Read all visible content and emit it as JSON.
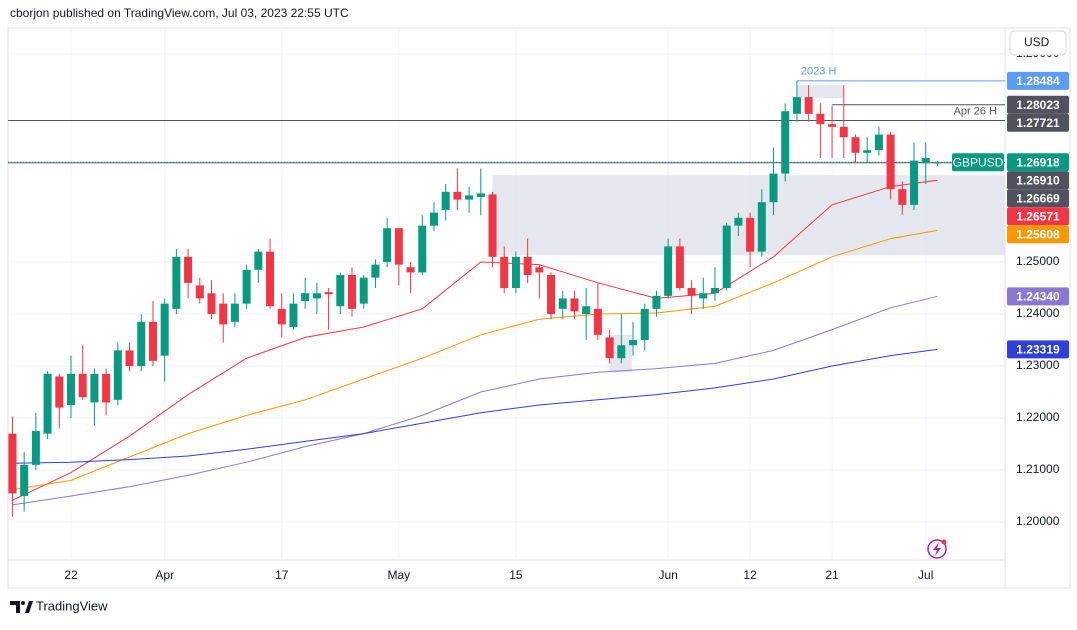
{
  "header": "cborjon published on TradingView.com, Jul 03, 2023 22:55 UTC",
  "footer": {
    "brand": "TradingView"
  },
  "chart_data": {
    "type": "candlestick",
    "symbol": "GBPUSD",
    "currency": "USD",
    "up_color": "#089981",
    "down_color": "#f23645",
    "grid": true,
    "xlim": [
      -0.38,
      84.77
    ],
    "ylim": [
      1.1927,
      1.295
    ],
    "xticks": [
      {
        "value": 5,
        "label": "22"
      },
      {
        "value": 13,
        "label": "Apr"
      },
      {
        "value": 23,
        "label": "17"
      },
      {
        "value": 33,
        "label": "May"
      },
      {
        "value": 43,
        "label": "15"
      },
      {
        "value": 56,
        "label": "Jun"
      },
      {
        "value": 63,
        "label": "12"
      },
      {
        "value": 70,
        "label": "21"
      },
      {
        "value": 78,
        "label": "Jul"
      }
    ],
    "yticks": [
      {
        "value": 1.2,
        "label": "1.20000"
      },
      {
        "value": 1.21,
        "label": "1.21000"
      },
      {
        "value": 1.22,
        "label": "1.22000"
      },
      {
        "value": 1.23,
        "label": "1.23000"
      },
      {
        "value": 1.24,
        "label": "1.24000"
      },
      {
        "value": 1.25,
        "label": "1.25000"
      },
      {
        "value": 1.29,
        "label": "1.29000"
      }
    ],
    "open": [
      1.217,
      1.205,
      1.211,
      1.217,
      1.228,
      1.2225,
      1.2285,
      1.223,
      1.2285,
      1.2235,
      1.233,
      1.23,
      1.2385,
      1.232,
      1.241,
      1.251,
      1.2455,
      1.244,
      1.242,
      1.2385,
      1.242,
      1.2485,
      1.252,
      1.241,
      1.2375,
      1.2425,
      1.243,
      1.2442,
      1.2415,
      1.2475,
      1.242,
      1.247,
      1.25,
      1.2565,
      1.249,
      1.248,
      1.257,
      1.26,
      1.2635,
      1.262,
      1.2625,
      1.263,
      1.251,
      1.245,
      1.251,
      1.249,
      1.2475,
      1.241,
      1.243,
      1.24,
      1.241,
      1.2355,
      1.2315,
      1.234,
      1.235,
      1.241,
      1.2435,
      1.253,
      1.245,
      1.243,
      1.244,
      1.245,
      1.257,
      1.2585,
      1.252,
      1.2615,
      1.267,
      1.2785,
      1.2817,
      1.2785,
      1.2765,
      1.276,
      1.274,
      1.271,
      1.2715,
      1.2745,
      1.264,
      1.261,
      1.269,
      1.269
    ],
    "high": [
      1.2203,
      1.2135,
      1.221,
      1.229,
      1.2285,
      1.232,
      1.234,
      1.2295,
      1.2295,
      1.2345,
      1.2345,
      1.24,
      1.2425,
      1.243,
      1.2525,
      1.2525,
      1.247,
      1.2465,
      1.244,
      1.244,
      1.2495,
      1.2525,
      1.2545,
      1.244,
      1.244,
      1.247,
      1.246,
      1.245,
      1.248,
      1.249,
      1.2475,
      1.2505,
      1.2585,
      1.2565,
      1.25,
      1.259,
      1.2615,
      1.265,
      1.268,
      1.2645,
      1.268,
      1.2635,
      1.253,
      1.252,
      1.2545,
      1.2495,
      1.248,
      1.2445,
      1.2445,
      1.245,
      1.246,
      1.237,
      1.24,
      1.2385,
      1.242,
      1.2445,
      1.2545,
      1.2545,
      1.2465,
      1.247,
      1.249,
      1.2575,
      1.2595,
      1.2595,
      1.264,
      1.272,
      1.2805,
      1.2848,
      1.284,
      1.2805,
      1.28,
      1.284,
      1.2745,
      1.274,
      1.276,
      1.275,
      1.2655,
      1.273,
      1.273,
      1.2695
    ],
    "low": [
      1.201,
      1.202,
      1.21,
      1.216,
      1.218,
      1.22,
      1.2235,
      1.2185,
      1.2205,
      1.2225,
      1.229,
      1.229,
      1.23,
      1.227,
      1.24,
      1.243,
      1.242,
      1.239,
      1.2345,
      1.2375,
      1.241,
      1.246,
      1.241,
      1.2355,
      1.237,
      1.241,
      1.24,
      1.237,
      1.24,
      1.2395,
      1.241,
      1.245,
      1.249,
      1.2455,
      1.244,
      1.2475,
      1.256,
      1.258,
      1.26,
      1.2595,
      1.259,
      1.249,
      1.244,
      1.244,
      1.246,
      1.243,
      1.239,
      1.239,
      1.239,
      1.235,
      1.235,
      1.2305,
      1.2305,
      1.232,
      1.233,
      1.2395,
      1.243,
      1.2445,
      1.24,
      1.241,
      1.2425,
      1.2445,
      1.255,
      1.249,
      1.251,
      1.259,
      1.2655,
      1.277,
      1.277,
      1.27,
      1.27,
      1.27,
      1.269,
      1.269,
      1.2705,
      1.262,
      1.259,
      1.26,
      1.265,
      1.2685
    ],
    "close": [
      1.2055,
      1.211,
      1.2175,
      1.2285,
      1.222,
      1.2285,
      1.224,
      1.2285,
      1.223,
      1.233,
      1.23,
      1.2385,
      1.231,
      1.242,
      1.251,
      1.246,
      1.243,
      1.24,
      1.238,
      1.242,
      1.2485,
      1.252,
      1.2415,
      1.238,
      1.242,
      1.244,
      1.244,
      1.2438,
      1.2475,
      1.241,
      1.247,
      1.2495,
      1.2565,
      1.2495,
      1.248,
      1.257,
      1.2595,
      1.2635,
      1.262,
      1.2628,
      1.2632,
      1.251,
      1.245,
      1.251,
      1.2475,
      1.248,
      1.24,
      1.243,
      1.2405,
      1.2415,
      1.236,
      1.2315,
      1.234,
      1.235,
      1.241,
      1.2435,
      1.253,
      1.245,
      1.2435,
      1.244,
      1.245,
      1.257,
      1.2585,
      1.252,
      1.2615,
      1.267,
      1.279,
      1.2817,
      1.2785,
      1.2765,
      1.276,
      1.274,
      1.271,
      1.2715,
      1.2745,
      1.264,
      1.261,
      1.2695,
      1.27,
      1.26918
    ],
    "series": [
      {
        "color": "#f23645",
        "x": [
          0,
          5,
          10,
          15,
          20,
          25,
          30,
          35,
          40,
          45,
          50,
          55,
          60,
          65,
          70,
          75,
          79
        ],
        "values": [
          1.2042,
          1.2095,
          1.2165,
          1.2245,
          1.2315,
          1.2355,
          1.2375,
          1.241,
          1.25,
          1.2495,
          1.246,
          1.243,
          1.244,
          1.251,
          1.261,
          1.2645,
          1.26571
        ],
        "last_label": "1.26571"
      },
      {
        "color": "#ff9800",
        "x": [
          0,
          5,
          10,
          15,
          20,
          25,
          30,
          35,
          40,
          45,
          50,
          55,
          60,
          65,
          70,
          75,
          79
        ],
        "values": [
          1.2062,
          1.208,
          1.2125,
          1.217,
          1.2205,
          1.2235,
          1.2275,
          1.2315,
          1.236,
          1.239,
          1.24,
          1.2402,
          1.2415,
          1.246,
          1.251,
          1.2545,
          1.25608
        ],
        "last_label": "1.25608"
      },
      {
        "color": "#8a78d0",
        "x": [
          0,
          5,
          10,
          15,
          20,
          25,
          30,
          35,
          40,
          45,
          50,
          55,
          60,
          65,
          70,
          75,
          79
        ],
        "values": [
          1.2033,
          1.205,
          1.2068,
          1.209,
          1.2115,
          1.2145,
          1.217,
          1.2205,
          1.225,
          1.2275,
          1.2288,
          1.2295,
          1.2305,
          1.233,
          1.237,
          1.2412,
          1.2434
        ],
        "last_label": "1.24340"
      },
      {
        "color": "#2f3fd9",
        "x": [
          0,
          5,
          10,
          15,
          20,
          25,
          30,
          35,
          40,
          45,
          50,
          55,
          60,
          65,
          70,
          75,
          79
        ],
        "values": [
          1.2113,
          1.2115,
          1.212,
          1.2127,
          1.214,
          1.2155,
          1.217,
          1.219,
          1.221,
          1.2225,
          1.2235,
          1.2245,
          1.2258,
          1.2275,
          1.23,
          1.232,
          1.23319
        ],
        "last_label": "1.23319"
      }
    ],
    "levels": [
      {
        "value": 1.28484,
        "label": "1.28484",
        "color": "#5b9cf6",
        "from": 67,
        "note": "2023 H",
        "note_anchor": "start"
      },
      {
        "value": 1.28023,
        "label": "1.28023",
        "color": "#50535e",
        "from": 70
      },
      {
        "value": 1.27721,
        "label": "1.27721",
        "color": "#50535e",
        "note": "Apr 26 H",
        "note_anchor": "end"
      },
      {
        "value": 1.2691,
        "label": "1.26910",
        "color": "#50535e"
      }
    ],
    "zones": [
      {
        "from": 41,
        "low": 1.2513,
        "high": 1.26669,
        "label": "1.26669",
        "color": "#e0e3eb",
        "tag_color": "#50535e"
      },
      {
        "from": 67,
        "to": 71,
        "low": 1.2815,
        "high": 1.284,
        "color": "#e0e3eb"
      },
      {
        "from": 51,
        "to": 52.9,
        "low": 1.2288,
        "high": 1.236,
        "color": "#e0e3eb"
      }
    ]
  }
}
